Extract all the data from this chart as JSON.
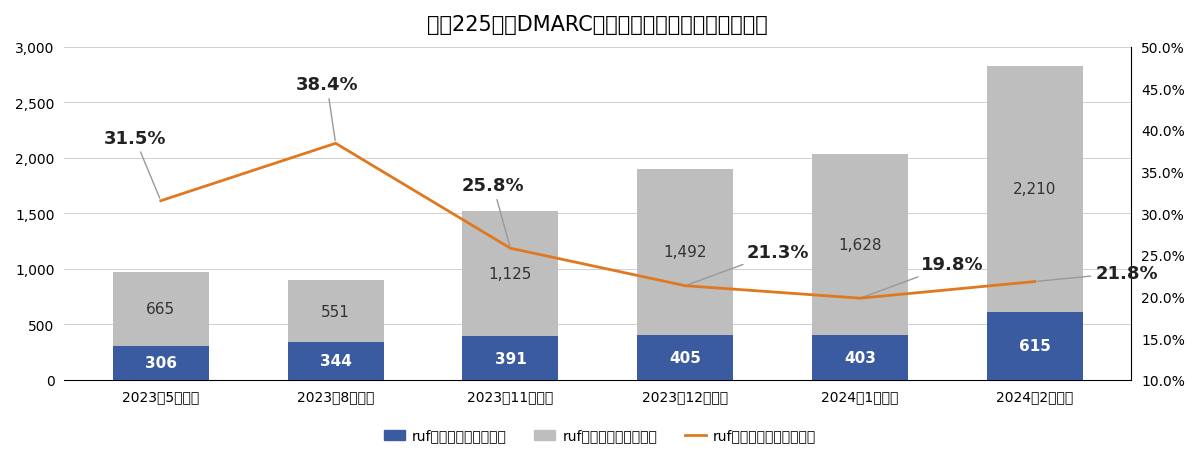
{
  "title": "日経225企業DMARC失敗レポートモニタリング状況",
  "categories": [
    "2023年5月調査",
    "2023年8月調査",
    "2023年11月調査",
    "2023年12月調査",
    "2024年1月調査",
    "2024年2月調査"
  ],
  "ruf_with": [
    306,
    344,
    391,
    405,
    403,
    615
  ],
  "ruf_without": [
    665,
    551,
    1125,
    1492,
    1628,
    2210
  ],
  "ruf_ratio": [
    31.5,
    38.4,
    25.8,
    21.3,
    19.8,
    21.8
  ],
  "bar_color_with": "#3A5BA0",
  "bar_color_without": "#BEBEBE",
  "line_color": "#E07820",
  "ylim_left": [
    0,
    3000
  ],
  "ylim_right": [
    10.0,
    50.0
  ],
  "yticks_left": [
    0,
    500,
    1000,
    1500,
    2000,
    2500,
    3000
  ],
  "yticks_right": [
    10.0,
    15.0,
    20.0,
    25.0,
    30.0,
    35.0,
    40.0,
    45.0,
    50.0
  ],
  "legend_with": "rufタグありドメイン数",
  "legend_without": "rufタグなしドメイン数",
  "legend_ratio": "rufタグありドメイン割合",
  "background_color": "#FFFFFF",
  "title_fontsize": 15,
  "tick_fontsize": 10,
  "label_fontsize": 10,
  "annotation_fontsize_bar": 11,
  "annotation_fontsize_pct": 13,
  "ratio_labels": [
    "31.5%",
    "38.4%",
    "25.8%",
    "21.3%",
    "19.8%",
    "21.8%"
  ]
}
